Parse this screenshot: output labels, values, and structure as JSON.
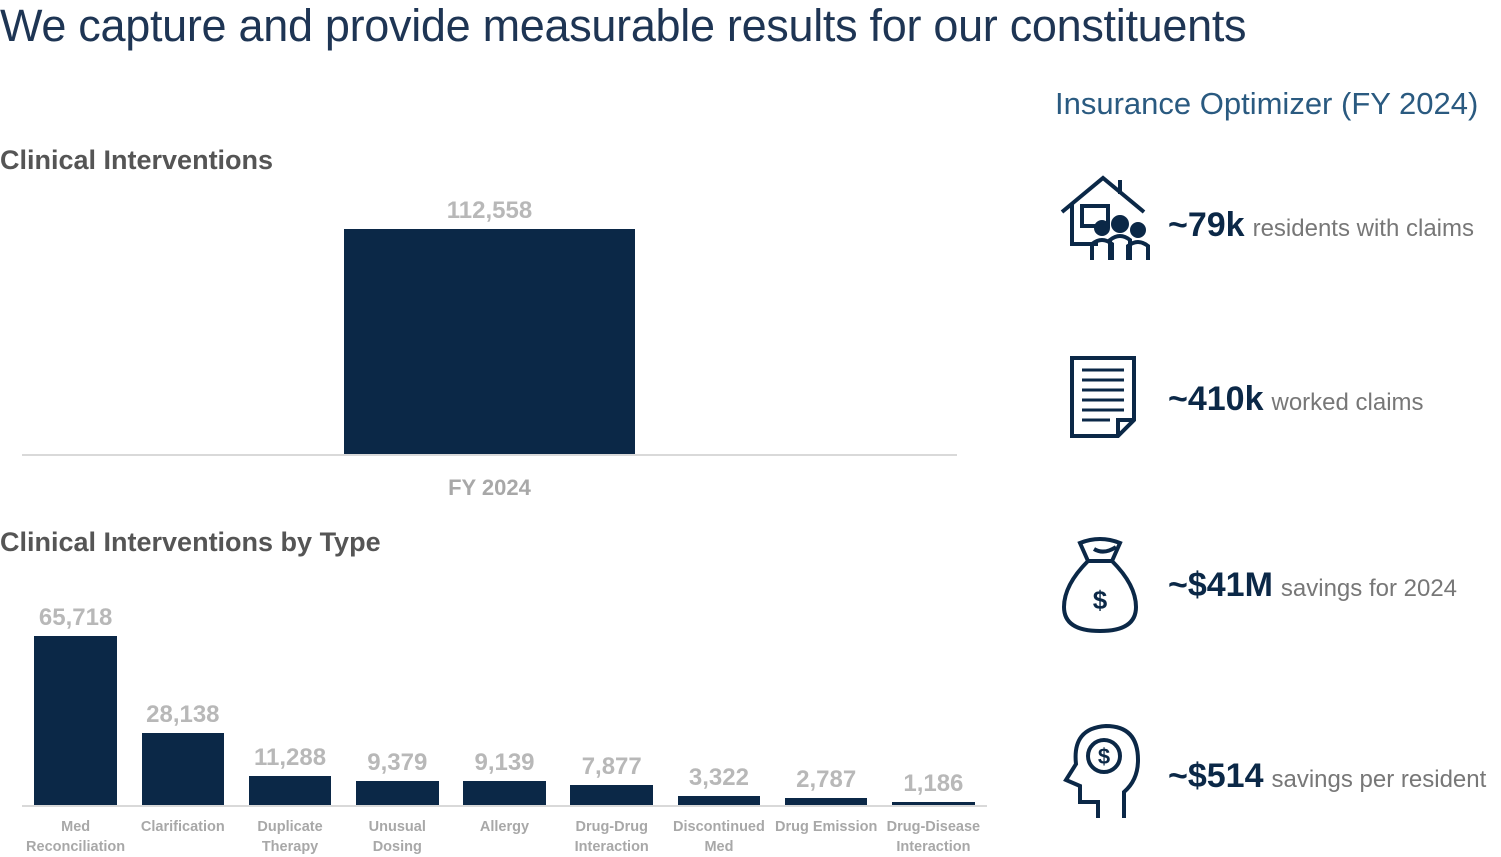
{
  "title": "We capture and provide measurable results for our constituents",
  "chart_data": [
    {
      "type": "bar",
      "title": "Clinical Interventions",
      "color": "#0b2847",
      "categories": [
        "FY 2024"
      ],
      "values": [
        112558
      ],
      "value_labels": [
        "112,558"
      ]
    },
    {
      "type": "bar",
      "title": "Clinical Interventions by Type",
      "color": "#0b2847",
      "categories": [
        "Med Reconciliation",
        "Clarification",
        "Duplicate Therapy",
        "Unusual Dosing",
        "Allergy",
        "Drug-Drug Interaction",
        "Discontinued Med",
        "Drug Emission",
        "Drug-Disease Interaction"
      ],
      "values": [
        65718,
        28138,
        11288,
        9379,
        9139,
        7877,
        3322,
        2787,
        1186
      ],
      "value_labels": [
        "65,718",
        "28,138",
        "11,288",
        "9,379",
        "9,139",
        "7,877",
        "3,322",
        "2,787",
        "1,186"
      ]
    }
  ],
  "insurance": {
    "title": "Insurance Optimizer (FY 2024)",
    "items": [
      {
        "value": "~79k",
        "text": "residents with claims"
      },
      {
        "value": "~410k",
        "text": "worked claims"
      },
      {
        "value": "~$41M",
        "text": "savings for 2024"
      },
      {
        "value": "~$514",
        "text": "savings per resident"
      }
    ]
  }
}
